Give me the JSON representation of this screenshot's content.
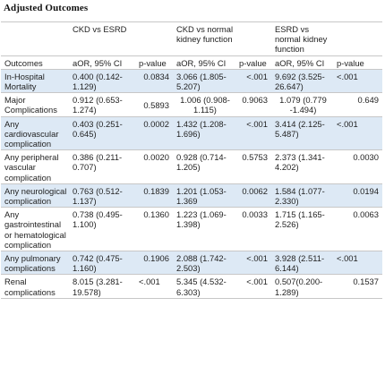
{
  "title": "Adjusted Outcomes",
  "group_headers": [
    "",
    "CKD vs ESRD",
    "",
    "CKD vs normal kidney function",
    "",
    "ESRD vs normal kidney function",
    ""
  ],
  "sub_headers": [
    "Outcomes",
    "aOR, 95% CI",
    "p-value",
    "aOR, 95% CI",
    "p-value",
    "aOR, 95% CI",
    "p-value"
  ],
  "rows": [
    {
      "outcome": "In-Hospital Mortality",
      "ckd_esrd_aor": "0.400 (0.142-1.129)",
      "ckd_esrd_p": "0.0834",
      "ckd_normal_aor": "3.066 (1.805-5.207)",
      "ckd_normal_p": "<.001",
      "esrd_normal_aor": "9.692 (3.525-26.647)",
      "esrd_normal_p": "<.001"
    },
    {
      "outcome": "Major Complications",
      "ckd_esrd_aor": "0.912 (0.653-1.274)",
      "ckd_esrd_p": "0.5893",
      "ckd_normal_aor": "1.006 (0.908-1.115)",
      "ckd_normal_p": "0.9063",
      "esrd_normal_aor": "1.079 (0.779 -1.494)",
      "esrd_normal_p": "0.649"
    },
    {
      "outcome": "Any cardiovascular complication",
      "ckd_esrd_aor": "0.403 (0.251-0.645)",
      "ckd_esrd_p": "0.0002",
      "ckd_normal_aor": "1.432 (1.208-1.696)",
      "ckd_normal_p": "<.001",
      "esrd_normal_aor": "3.414 (2.125-5.487)",
      "esrd_normal_p": "<.001"
    },
    {
      "outcome": "Any peripheral vascular complication",
      "ckd_esrd_aor": "0.386 (0.211-0.707)",
      "ckd_esrd_p": "0.0020",
      "ckd_normal_aor": "0.928 (0.714-1.205)",
      "ckd_normal_p": "0.5753",
      "esrd_normal_aor": "2.373 (1.341-4.202)",
      "esrd_normal_p": "0.0030"
    },
    {
      "outcome": "Any neurological complication",
      "ckd_esrd_aor": "0.763 (0.512-1.137)",
      "ckd_esrd_p": "0.1839",
      "ckd_normal_aor": "1.201 (1.053-1.369",
      "ckd_normal_p": "0.0062",
      "esrd_normal_aor": "1.584 (1.077-2.330)",
      "esrd_normal_p": "0.0194"
    },
    {
      "outcome": "Any gastrointestinal or hematological complication",
      "ckd_esrd_aor": "0.738 (0.495-1.100)",
      "ckd_esrd_p": "0.1360",
      "ckd_normal_aor": "1.223 (1.069-1.398)",
      "ckd_normal_p": "0.0033",
      "esrd_normal_aor": "1.715 (1.165-2.526)",
      "esrd_normal_p": "0.0063"
    },
    {
      "outcome": "Any pulmonary complications",
      "ckd_esrd_aor": "0.742 (0.475-1.160)",
      "ckd_esrd_p": "0.1906",
      "ckd_normal_aor": "2.088 (1.742-2.503)",
      "ckd_normal_p": "<.001",
      "esrd_normal_aor": "3.928 (2.511-6.144)",
      "esrd_normal_p": "<.001"
    },
    {
      "outcome": "Renal complications",
      "ckd_esrd_aor": "8.015 (3.281-19.578)",
      "ckd_esrd_p": "<.001",
      "ckd_normal_aor": "5.345 (4.532-6.303)",
      "ckd_normal_p": "<.001",
      "esrd_normal_aor": "0.507(0.200-1.289)",
      "esrd_normal_p": "0.1537"
    }
  ],
  "colors": {
    "row_shade": "#dde9f5",
    "row_plain": "#ffffff",
    "rule": "#c7c7c7",
    "text": "#1f1f1f"
  }
}
